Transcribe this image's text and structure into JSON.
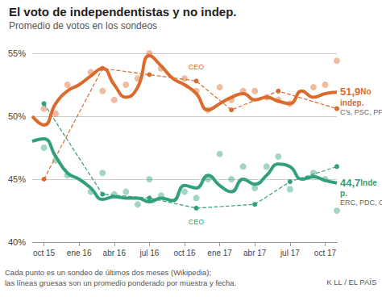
{
  "chart_data": {
    "type": "line",
    "title": "El voto de independentistas y no indep.",
    "subtitle": "Promedio de votos en los sondeos",
    "note": [
      "Cada punto es un sondeo de últimos dos meses (Wikipedia);",
      "las líneas gruesas son un promedio ponderado por muestra y fecha."
    ],
    "source": "K LL / EL PAÍS",
    "categories": [
      null,
      "oct 15",
      null,
      null,
      "ene 16",
      null,
      null,
      "abr 16",
      null,
      null,
      "jul 16",
      null,
      null,
      "oct 16",
      null,
      null,
      "ene 17",
      null,
      null,
      "abr 17",
      null,
      null,
      "jul 17",
      null,
      null,
      "oct 17",
      null
    ],
    "ylim": [
      40,
      55
    ],
    "yticks": [
      {
        "value": 40,
        "label": "40%"
      },
      {
        "value": 45,
        "label": "45%"
      },
      {
        "value": 50,
        "label": "50%"
      },
      {
        "value": 55,
        "label": "55%"
      }
    ],
    "grid": true,
    "series": [
      {
        "type": "scatter",
        "color": "#db6b2c",
        "marker": "circle",
        "values": [
          null,
          50.6,
          50.2,
          52.5,
          null,
          53.5,
          52.0,
          51.3,
          52.5,
          53.0,
          55.0,
          53.8,
          null,
          53.0,
          52.0,
          50.5,
          52.3,
          51.3,
          52.0,
          52.0,
          51.5,
          51.3,
          51.0,
          null,
          52.3,
          52.5,
          54.4
        ]
      },
      {
        "type": "scatter",
        "color": "#33a07c",
        "marker": "circle",
        "values": [
          null,
          47.5,
          46.5,
          45.3,
          null,
          44.0,
          45.5,
          43.8,
          44.0,
          43.0,
          45.0,
          43.7,
          null,
          44.0,
          43.5,
          45.0,
          47.0,
          45.0,
          46.0,
          44.3,
          46.0,
          46.8,
          44.2,
          null,
          45.5,
          45.0,
          42.5
        ]
      },
      {
        "name": "CEO",
        "type": "line",
        "color": "#db6b2c",
        "line_style": "dashed",
        "marker": "circle",
        "values": [
          null,
          45.0,
          null,
          null,
          null,
          null,
          53.8,
          null,
          null,
          null,
          53.3,
          null,
          null,
          null,
          52.8,
          null,
          null,
          50.5,
          null,
          null,
          null,
          52.0,
          null,
          null,
          null,
          null,
          50.6
        ]
      },
      {
        "name": "CEO",
        "type": "line",
        "color": "#33a07c",
        "line_style": "dashed",
        "marker": "circle",
        "values": [
          null,
          51.0,
          null,
          null,
          null,
          null,
          43.8,
          null,
          null,
          null,
          43.5,
          null,
          null,
          null,
          42.7,
          null,
          null,
          null,
          null,
          43.0,
          null,
          null,
          44.8,
          null,
          null,
          null,
          46.0
        ]
      },
      {
        "name": "No indep.",
        "type": "line",
        "color": "#db6b2c",
        "line_style": "solid",
        "members": "C's, PSC, PP, Unió, CSQP",
        "values": [
          50.0,
          49.3,
          51.0,
          52.0,
          52.5,
          53.2,
          53.8,
          52.5,
          51.5,
          52.3,
          54.8,
          54.0,
          53.0,
          52.5,
          51.8,
          50.5,
          51.0,
          51.5,
          51.8,
          51.3,
          51.5,
          51.2,
          51.0,
          52.0,
          51.5,
          51.8,
          51.9
        ],
        "value_labels": [
          null,
          null,
          null,
          null,
          null,
          null,
          null,
          null,
          null,
          null,
          null,
          null,
          null,
          null,
          null,
          null,
          null,
          null,
          null,
          null,
          null,
          null,
          null,
          null,
          null,
          null,
          "51,9"
        ]
      },
      {
        "name": "Indep.",
        "type": "line",
        "color": "#33a07c",
        "line_style": "solid",
        "members": "ERC, PDC, CUP",
        "values": [
          48.0,
          48.2,
          46.8,
          45.5,
          45.0,
          44.3,
          43.4,
          43.6,
          43.5,
          43.5,
          43.2,
          43.5,
          43.3,
          44.5,
          44.3,
          45.3,
          44.5,
          44.0,
          45.0,
          44.6,
          45.3,
          46.2,
          46.0,
          45.0,
          45.2,
          44.9,
          44.7
        ],
        "value_labels": [
          null,
          null,
          null,
          null,
          null,
          null,
          null,
          null,
          null,
          null,
          null,
          null,
          null,
          null,
          null,
          null,
          null,
          null,
          null,
          null,
          null,
          null,
          null,
          null,
          null,
          null,
          "44,7"
        ]
      }
    ]
  }
}
